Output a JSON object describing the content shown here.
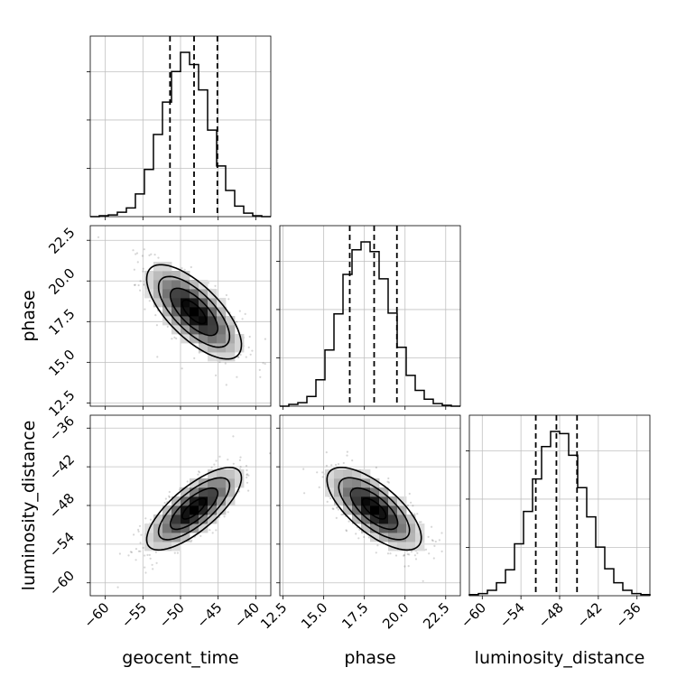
{
  "chart_data": {
    "type": "corner",
    "parameters": [
      "geocent_time",
      "phase",
      "luminosity_distance"
    ],
    "axis_labels": {
      "x": [
        "geocent_time",
        "phase",
        "luminosity_distance"
      ],
      "y": [
        "phase",
        "luminosity_distance"
      ]
    },
    "ranges": {
      "geocent_time": [
        -62,
        -38
      ],
      "phase": [
        12.3,
        23.4
      ],
      "luminosity_distance": [
        -62,
        -34
      ]
    },
    "ticks": {
      "geocent_time": [
        -60,
        -55,
        -50,
        -45,
        -40
      ],
      "phase": [
        12.5,
        15.0,
        17.5,
        20.0,
        22.5
      ],
      "luminosity_distance": [
        -60,
        -54,
        -48,
        -42,
        -36
      ]
    },
    "tick_labels": {
      "geocent_time": [
        "−60",
        "−55",
        "−50",
        "−45",
        "−40"
      ],
      "phase": [
        "12.5",
        "15.0",
        "17.5",
        "20.0",
        "22.5"
      ],
      "luminosity_distance": [
        "−60",
        "−54",
        "−48",
        "−42",
        "−36"
      ]
    },
    "quantiles": {
      "geocent_time": [
        -51.4,
        -48.2,
        -45.1
      ],
      "phase": [
        16.6,
        18.1,
        19.5
      ],
      "luminosity_distance": [
        -51.7,
        -48.5,
        -45.3
      ]
    },
    "histograms": {
      "geocent_time": [
        0,
        1,
        2,
        5,
        10,
        26,
        54,
        94,
        131,
        166,
        188,
        174,
        145,
        99,
        58,
        30,
        12,
        4,
        1,
        0
      ],
      "phase": [
        0,
        2,
        4,
        11,
        30,
        64,
        105,
        150,
        178,
        187,
        176,
        145,
        106,
        67,
        35,
        18,
        8,
        3,
        1,
        0
      ],
      "luminosity_distance": [
        1,
        2,
        5,
        12,
        24,
        48,
        78,
        108,
        138,
        152,
        150,
        130,
        100,
        73,
        45,
        25,
        12,
        5,
        2,
        1
      ]
    },
    "correlations": {
      "phase_vs_geocent_time": -0.7,
      "luminosity_distance_vs_geocent_time": 0.75,
      "luminosity_distance_vs_phase": -0.7
    },
    "grid": true
  }
}
